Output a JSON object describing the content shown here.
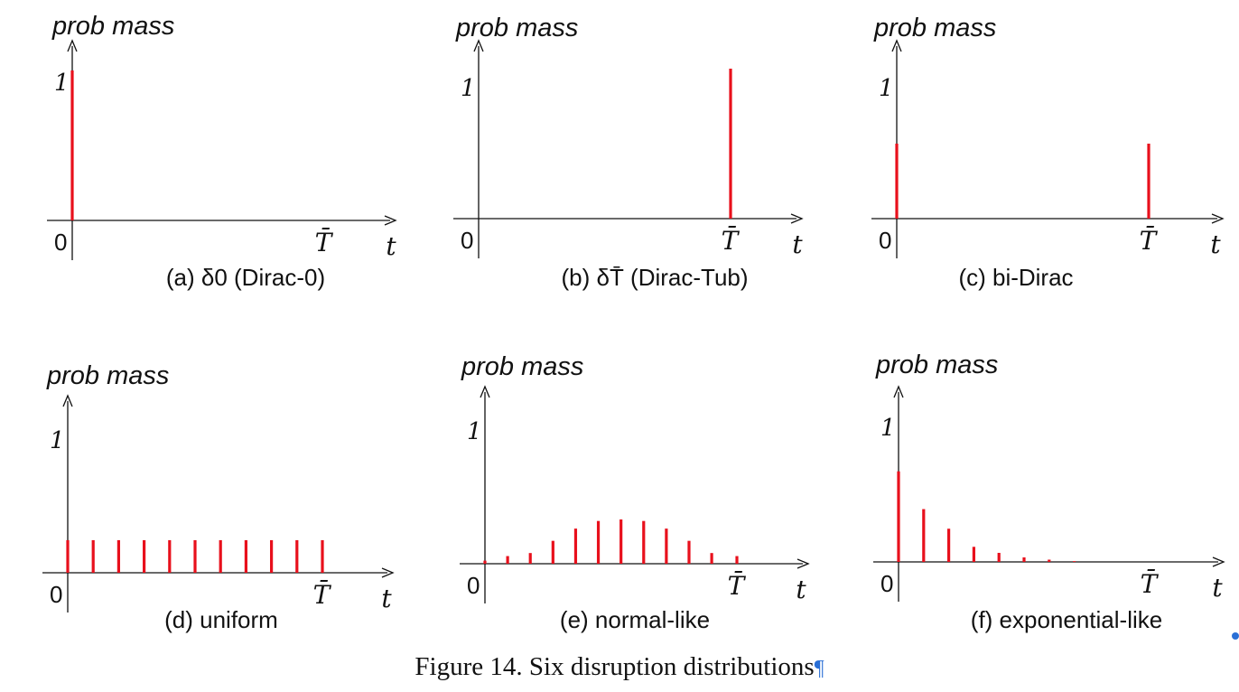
{
  "figure_caption": "Figure 14. Six disruption distributions",
  "pilcrow": "¶",
  "colors": {
    "mark": "#e8101c",
    "axis": "#111111",
    "pilcrow": "#2a6fd6"
  },
  "chart_data": [
    {
      "type": "bar",
      "caption": "(a) δ0  (Dirac-0)",
      "ylabel": "prob mass",
      "xlabel": "t",
      "y_tick": "1",
      "x_ticks": [
        "0",
        "T̄"
      ],
      "ylim": [
        0,
        1
      ],
      "x": [
        0
      ],
      "values": [
        1.0
      ]
    },
    {
      "type": "bar",
      "caption": "(b) δT̄  (Dirac-Tub)",
      "ylabel": "prob mass",
      "xlabel": "t",
      "y_tick": "1",
      "x_ticks": [
        "0",
        "T̄"
      ],
      "ylim": [
        0,
        1
      ],
      "x": [
        1
      ],
      "values": [
        1.0
      ]
    },
    {
      "type": "bar",
      "caption": "(c) bi-Dirac",
      "ylabel": "prob mass",
      "xlabel": "t",
      "y_tick": "1",
      "x_ticks": [
        "0",
        "T̄"
      ],
      "ylim": [
        0,
        1
      ],
      "x": [
        0,
        1
      ],
      "values": [
        0.5,
        0.5
      ]
    },
    {
      "type": "bar",
      "caption": "(d) uniform",
      "ylabel": "prob mass",
      "xlabel": "t",
      "y_tick": "1",
      "x_ticks": [
        "0",
        "T̄"
      ],
      "ylim": [
        0,
        1
      ],
      "x": [
        0,
        0.1,
        0.2,
        0.3,
        0.4,
        0.5,
        0.6,
        0.7,
        0.8,
        0.9,
        1.0
      ],
      "values": [
        0.22,
        0.22,
        0.22,
        0.22,
        0.22,
        0.22,
        0.22,
        0.22,
        0.22,
        0.22,
        0.22
      ]
    },
    {
      "type": "bar",
      "caption": "(e) normal-like",
      "ylabel": "prob mass",
      "xlabel": "t",
      "y_tick": "1",
      "x_ticks": [
        "0",
        "T̄"
      ],
      "ylim": [
        0,
        1
      ],
      "x": [
        0,
        0.09,
        0.18,
        0.27,
        0.36,
        0.45,
        0.54,
        0.63,
        0.72,
        0.81,
        0.9,
        1.0
      ],
      "values": [
        0.02,
        0.05,
        0.07,
        0.15,
        0.23,
        0.28,
        0.29,
        0.28,
        0.23,
        0.15,
        0.07,
        0.05
      ]
    },
    {
      "type": "bar",
      "caption": "(f) exponential-like",
      "ylabel": "prob mass",
      "xlabel": "t",
      "y_tick": "1",
      "x_ticks": [
        "0",
        "T̄"
      ],
      "ylim": [
        0,
        1
      ],
      "x": [
        0,
        0.1,
        0.2,
        0.3,
        0.4,
        0.5,
        0.6,
        0.7
      ],
      "values": [
        0.6,
        0.35,
        0.22,
        0.1,
        0.06,
        0.03,
        0.015,
        0.005
      ]
    }
  ]
}
